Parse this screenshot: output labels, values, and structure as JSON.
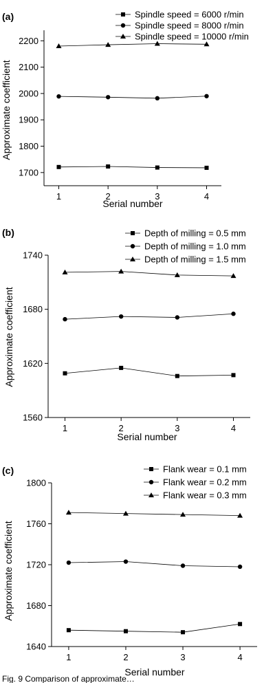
{
  "figure": {
    "caption_fragment": "Fig. 9  Comparison of approximate…"
  },
  "chart_data": [
    {
      "type": "line",
      "panel": "(a)",
      "title": "",
      "xlabel": "Serial number",
      "ylabel": "Approximate coefficient",
      "x": [
        1,
        2,
        3,
        4
      ],
      "xlim": [
        0.7,
        4.3
      ],
      "ylim": [
        1650,
        2240
      ],
      "yticks": [
        1700,
        1800,
        1900,
        2000,
        2100,
        2200
      ],
      "xticks": [
        1,
        2,
        3,
        4
      ],
      "legend_position": "top-right",
      "series": [
        {
          "name": "Spindle speed = 6000 r/min",
          "marker": "square",
          "values": [
            1721,
            1723,
            1719,
            1718
          ]
        },
        {
          "name": "Spindle speed = 8000 r/min",
          "marker": "circle",
          "values": [
            1989,
            1986,
            1982,
            1990
          ]
        },
        {
          "name": "Spindle speed = 10000 r/min",
          "marker": "triangle",
          "values": [
            2180,
            2185,
            2189,
            2187
          ]
        }
      ]
    },
    {
      "type": "line",
      "panel": "(b)",
      "title": "",
      "xlabel": "Serial number",
      "ylabel": "Approximate coefficient",
      "x": [
        1,
        2,
        3,
        4
      ],
      "xlim": [
        0.7,
        4.3
      ],
      "ylim": [
        1560,
        1740
      ],
      "yticks": [
        1560,
        1620,
        1680,
        1740
      ],
      "xticks": [
        1,
        2,
        3,
        4
      ],
      "legend_position": "top-right",
      "series": [
        {
          "name": "Depth of milling = 0.5 mm",
          "marker": "square",
          "values": [
            1609,
            1615,
            1606,
            1607
          ]
        },
        {
          "name": "Depth of milling = 1.0 mm",
          "marker": "circle",
          "values": [
            1669,
            1672,
            1671,
            1675
          ]
        },
        {
          "name": "Depth of milling = 1.5 mm",
          "marker": "triangle",
          "values": [
            1721,
            1722,
            1718,
            1717
          ]
        }
      ]
    },
    {
      "type": "line",
      "panel": "(c)",
      "title": "",
      "xlabel": "Serial number",
      "ylabel": "Approximate coefficient",
      "x": [
        1,
        2,
        3,
        4
      ],
      "xlim": [
        0.7,
        4.3
      ],
      "ylim": [
        1640,
        1800
      ],
      "yticks": [
        1640,
        1680,
        1720,
        1760,
        1800
      ],
      "xticks": [
        1,
        2,
        3,
        4
      ],
      "legend_position": "top-right",
      "series": [
        {
          "name": "Flank wear = 0.1 mm",
          "marker": "square",
          "values": [
            1656,
            1655,
            1654,
            1662
          ]
        },
        {
          "name": "Flank wear = 0.2 mm",
          "marker": "circle",
          "values": [
            1722,
            1723,
            1719,
            1718
          ]
        },
        {
          "name": "Flank wear = 0.3 mm",
          "marker": "triangle",
          "values": [
            1771,
            1770,
            1769,
            1768
          ]
        }
      ]
    }
  ]
}
